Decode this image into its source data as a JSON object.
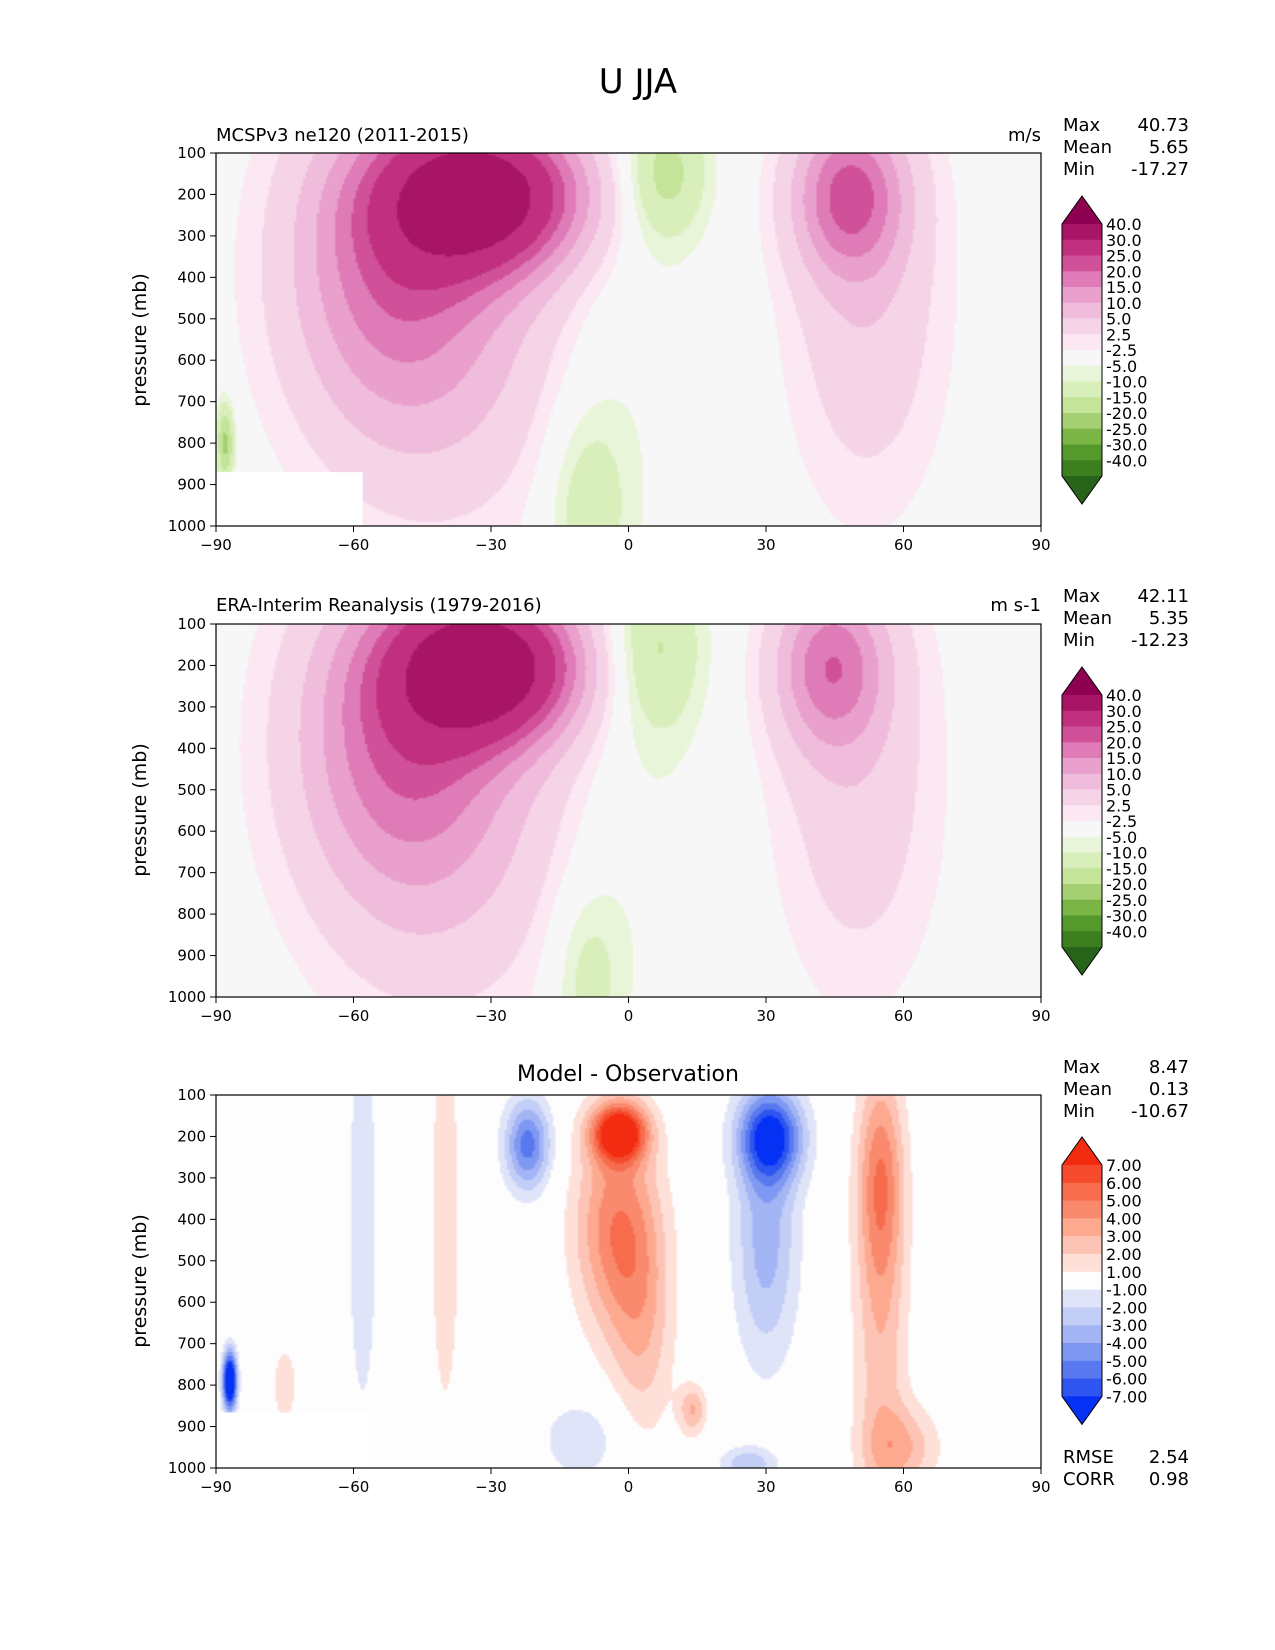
{
  "figure": {
    "title": "U JJA"
  },
  "panels": [
    {
      "title_left": "MCSPv3 ne120 (2011-2015)",
      "title_center": "",
      "units": "m/s",
      "ylabel": "pressure (mb)",
      "stats": [
        {
          "label": "Max",
          "value": "40.73"
        },
        {
          "label": "Mean",
          "value": "5.65"
        },
        {
          "label": "Min",
          "value": "-17.27"
        }
      ],
      "extra_stats": []
    },
    {
      "title_left": "ERA-Interim Reanalysis (1979-2016)",
      "title_center": "",
      "units": "m s-1",
      "ylabel": "pressure (mb)",
      "stats": [
        {
          "label": "Max",
          "value": "42.11"
        },
        {
          "label": "Mean",
          "value": "5.35"
        },
        {
          "label": "Min",
          "value": "-12.23"
        }
      ],
      "extra_stats": []
    },
    {
      "title_left": "",
      "title_center": "Model - Observation",
      "units": "",
      "ylabel": "pressure (mb)",
      "stats": [
        {
          "label": "Max",
          "value": "8.47"
        },
        {
          "label": "Mean",
          "value": "0.13"
        },
        {
          "label": "Min",
          "value": "-10.67"
        }
      ],
      "extra_stats": [
        {
          "label": "RMSE",
          "value": "2.54"
        },
        {
          "label": "CORR",
          "value": "0.98"
        }
      ]
    }
  ],
  "colors": {
    "wind_scale": [
      "#276419",
      "#3b7f1f",
      "#54992c",
      "#7ab545",
      "#a4cf73",
      "#c4e49a",
      "#d8efbb",
      "#e9f5d8",
      "#f7f7f7",
      "#fbe8f2",
      "#f6d4e8",
      "#f0bcdc",
      "#e9a0cc",
      "#df7bb6",
      "#d05099",
      "#c0307f",
      "#a81466",
      "#8e0152"
    ],
    "diff_scale": [
      "#0531f4",
      "#2e55f0",
      "#5878ef",
      "#7f98f2",
      "#a3b5f5",
      "#c3cef7",
      "#dfe4f9",
      "#fdfdfd",
      "#fee0d8",
      "#fdc4b5",
      "#fca98f",
      "#f98a6e",
      "#f76c4d",
      "#f54a2c",
      "#f32b10"
    ],
    "background_fill": "#f7f7f7",
    "missing_fill": "#ffffff"
  },
  "chart_data": [
    {
      "type": "heatmap",
      "panel": "model",
      "title": "MCSPv3 ne120 (2011-2015)",
      "units": "m/s",
      "xlabel": "",
      "ylabel": "pressure (mb)",
      "xlim": [
        -90,
        90
      ],
      "ylim": [
        1000,
        100
      ],
      "xticks": [
        "−90",
        "−60",
        "−30",
        "0",
        "30",
        "60",
        "90"
      ],
      "yticks": [
        "100",
        "200",
        "300",
        "400",
        "500",
        "600",
        "700",
        "800",
        "900",
        "1000"
      ],
      "colorbar_labels": [
        "40.0",
        "30.0",
        "25.0",
        "20.0",
        "15.0",
        "10.0",
        "5.0",
        "2.5",
        "-2.5",
        "-5.0",
        "-10.0",
        "-15.0",
        "-20.0",
        "-25.0",
        "-30.0",
        "-40.0"
      ],
      "features": [
        {
          "lat": -31,
          "p": 200,
          "value": 40.7,
          "lat_width": 22,
          "p_width": 185
        },
        {
          "lat": -52,
          "p": 360,
          "value": 17,
          "lat_width": 22,
          "p_width": 380
        },
        {
          "lat": -40,
          "p": 500,
          "value": 10,
          "lat_width": 30,
          "p_width": 520
        },
        {
          "lat": 48,
          "p": 200,
          "value": 22,
          "lat_width": 12,
          "p_width": 190
        },
        {
          "lat": 52,
          "p": 450,
          "value": 9,
          "lat_width": 17,
          "p_width": 500
        },
        {
          "lat": 8,
          "p": 150,
          "value": -12,
          "lat_width": 9,
          "p_width": 160
        },
        {
          "lat": -9,
          "p": 950,
          "value": -8,
          "lat_width": 9,
          "p_width": 250
        },
        {
          "lat": 0,
          "p": 500,
          "value": -3,
          "lat_width": 16,
          "p_width": 650
        },
        {
          "lat": -88,
          "p": 800,
          "value": -17,
          "lat_width": 2,
          "p_width": 100
        }
      ],
      "missing_region": {
        "lat": [
          -90,
          -58
        ],
        "p": [
          870,
          1000
        ]
      }
    },
    {
      "type": "heatmap",
      "panel": "observation",
      "title": "ERA-Interim Reanalysis (1979-2016)",
      "units": "m s-1",
      "xlabel": "",
      "ylabel": "pressure (mb)",
      "xlim": [
        -90,
        90
      ],
      "ylim": [
        1000,
        100
      ],
      "xticks": [
        "−90",
        "−60",
        "−30",
        "0",
        "30",
        "60",
        "90"
      ],
      "yticks": [
        "100",
        "200",
        "300",
        "400",
        "500",
        "600",
        "700",
        "800",
        "900",
        "1000"
      ],
      "colorbar_labels": [
        "40.0",
        "30.0",
        "25.0",
        "20.0",
        "15.0",
        "10.0",
        "5.0",
        "2.5",
        "-2.5",
        "-5.0",
        "-10.0",
        "-15.0",
        "-20.0",
        "-25.0",
        "-30.0",
        "-40.0"
      ],
      "features": [
        {
          "lat": -30,
          "p": 200,
          "value": 42.1,
          "lat_width": 20,
          "p_width": 180
        },
        {
          "lat": -50,
          "p": 360,
          "value": 18,
          "lat_width": 22,
          "p_width": 380
        },
        {
          "lat": -40,
          "p": 520,
          "value": 10,
          "lat_width": 30,
          "p_width": 540
        },
        {
          "lat": 44,
          "p": 200,
          "value": 20,
          "lat_width": 12,
          "p_width": 200
        },
        {
          "lat": 50,
          "p": 480,
          "value": 8,
          "lat_width": 18,
          "p_width": 520
        },
        {
          "lat": 6,
          "p": 160,
          "value": -10,
          "lat_width": 10,
          "p_width": 200
        },
        {
          "lat": -9,
          "p": 950,
          "value": -7,
          "lat_width": 8,
          "p_width": 230
        },
        {
          "lat": 2,
          "p": 500,
          "value": -3,
          "lat_width": 15,
          "p_width": 650
        }
      ],
      "missing_region": null
    },
    {
      "type": "heatmap",
      "panel": "difference",
      "title": "Model - Observation",
      "units": "",
      "xlabel": "",
      "ylabel": "pressure (mb)",
      "xlim": [
        -90,
        90
      ],
      "ylim": [
        1000,
        100
      ],
      "xticks": [
        "−90",
        "−60",
        "−30",
        "0",
        "30",
        "60",
        "90"
      ],
      "yticks": [
        "100",
        "200",
        "300",
        "400",
        "500",
        "600",
        "700",
        "800",
        "900",
        "1000"
      ],
      "colorbar_labels": [
        "7.00",
        "6.00",
        "5.00",
        "4.00",
        "3.00",
        "2.00",
        "1.00",
        "-1.00",
        "-2.00",
        "-3.00",
        "-4.00",
        "-5.00",
        "-6.00",
        "-7.00"
      ],
      "features": [
        {
          "lat": -2,
          "p": 190,
          "value": 8.3,
          "lat_width": 6,
          "p_width": 70
        },
        {
          "lat": -3,
          "p": 420,
          "value": 4.5,
          "lat_width": 9,
          "p_width": 250
        },
        {
          "lat": 3,
          "p": 650,
          "value": 2.5,
          "lat_width": 7,
          "p_width": 300
        },
        {
          "lat": 14,
          "p": 860,
          "value": 3,
          "lat_width": 3,
          "p_width": 60
        },
        {
          "lat": -22,
          "p": 220,
          "value": -5.5,
          "lat_width": 5,
          "p_width": 110
        },
        {
          "lat": 31,
          "p": 200,
          "value": -7,
          "lat_width": 7,
          "p_width": 110
        },
        {
          "lat": 30,
          "p": 450,
          "value": -3.5,
          "lat_width": 7,
          "p_width": 300
        },
        {
          "lat": 55,
          "p": 300,
          "value": 4,
          "lat_width": 5,
          "p_width": 260
        },
        {
          "lat": 55,
          "p": 700,
          "value": 2.5,
          "lat_width": 6,
          "p_width": 500
        },
        {
          "lat": -40,
          "p": 400,
          "value": 1.6,
          "lat_width": 4,
          "p_width": 600
        },
        {
          "lat": -58,
          "p": 400,
          "value": -1.6,
          "lat_width": 4,
          "p_width": 600
        },
        {
          "lat": -87,
          "p": 790,
          "value": -10.7,
          "lat_width": 1.5,
          "p_width": 70
        },
        {
          "lat": -75,
          "p": 800,
          "value": 2,
          "lat_width": 2.5,
          "p_width": 90
        },
        {
          "lat": -10,
          "p": 930,
          "value": -1.7,
          "lat_width": 10,
          "p_width": 110
        },
        {
          "lat": 26,
          "p": 990,
          "value": -2.8,
          "lat_width": 6,
          "p_width": 40
        },
        {
          "lat": 60,
          "p": 950,
          "value": 2.6,
          "lat_width": 8,
          "p_width": 100
        }
      ],
      "missing_region": {
        "lat": [
          -90,
          -57
        ],
        "p": [
          866,
          1000
        ]
      }
    }
  ]
}
